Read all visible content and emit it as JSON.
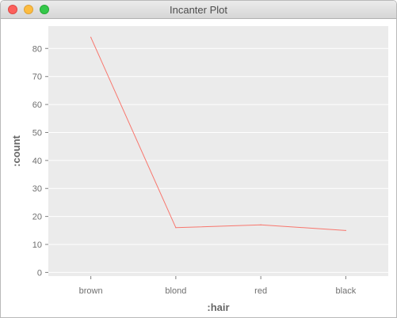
{
  "window": {
    "title": "Incanter Plot"
  },
  "colors": {
    "plot_background": "#ebebeb",
    "gridline": "#ffffff",
    "series_line": "#f8766d"
  },
  "chart_data": {
    "type": "line",
    "title": "",
    "xlabel": ":hair",
    "ylabel": ":count",
    "categories": [
      "brown",
      "blond",
      "red",
      "black"
    ],
    "series": [
      {
        "values": [
          84,
          16,
          17,
          15
        ]
      }
    ],
    "ylim": [
      -1.3,
      88
    ],
    "yticks": [
      0,
      10,
      20,
      30,
      40,
      50,
      60,
      70,
      80
    ],
    "grid": true,
    "legend": "none"
  }
}
